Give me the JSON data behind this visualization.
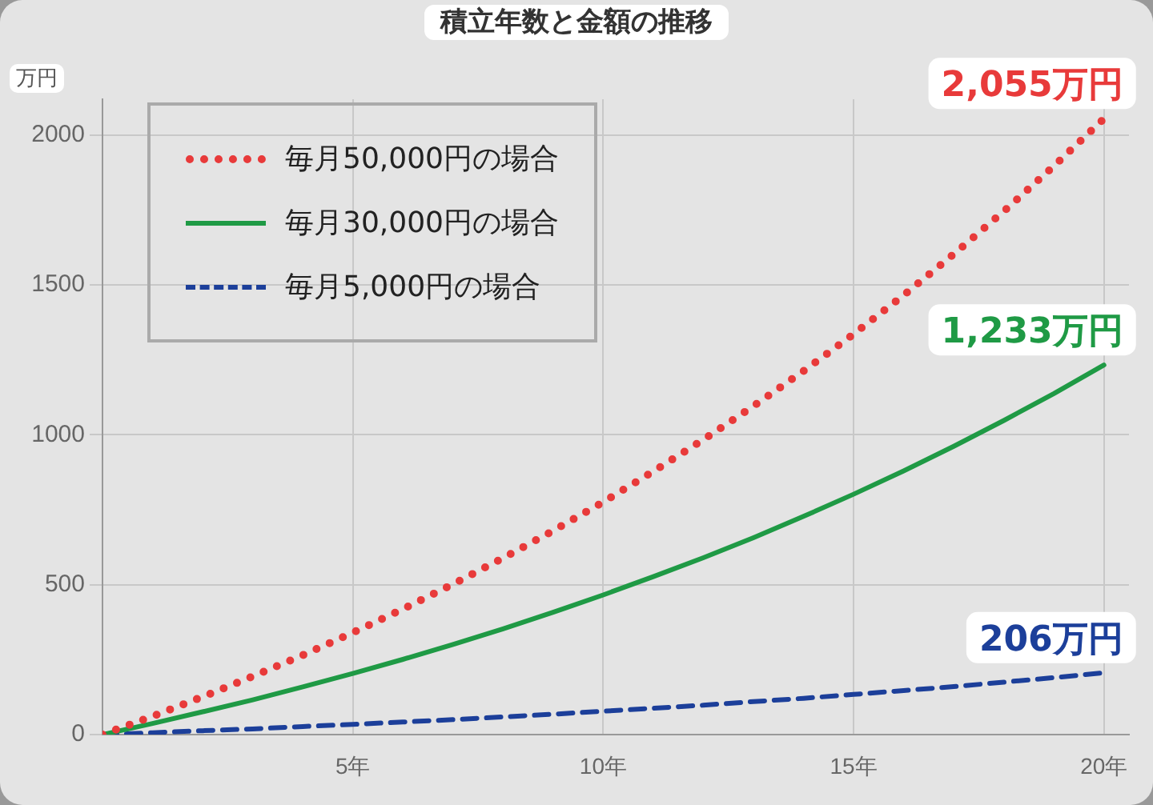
{
  "chart_data": {
    "type": "line",
    "title": "積立年数と金額の推移",
    "ylabel": "万円",
    "x": [
      0,
      1,
      2,
      3,
      4,
      5,
      6,
      7,
      8,
      9,
      10,
      11,
      12,
      13,
      14,
      15,
      16,
      17,
      18,
      19,
      20
    ],
    "series": [
      {
        "name": "毎月50,000円の場合",
        "color": "#e83a3a",
        "line_style": "dotted",
        "values": [
          0,
          61,
          126,
          194,
          265,
          340,
          419,
          502,
          589,
          680,
          776,
          878,
          984,
          1096,
          1213,
          1336,
          1466,
          1603,
          1746,
          1897,
          2055
        ],
        "value_labels": [
          null,
          null,
          null,
          null,
          null,
          null,
          null,
          null,
          null,
          null,
          null,
          null,
          null,
          null,
          null,
          null,
          null,
          null,
          null,
          null,
          "2,055万円"
        ]
      },
      {
        "name": "毎月30,000円の場合",
        "color": "#1f9a45",
        "line_style": "solid",
        "values": [
          0,
          37,
          76,
          116,
          159,
          204,
          251,
          301,
          353,
          408,
          466,
          527,
          590,
          657,
          728,
          802,
          880,
          962,
          1048,
          1138,
          1233
        ],
        "value_labels": [
          null,
          null,
          null,
          null,
          null,
          null,
          null,
          null,
          null,
          null,
          null,
          null,
          null,
          null,
          null,
          null,
          null,
          null,
          null,
          null,
          "1,233万円"
        ]
      },
      {
        "name": "毎月5,000円の場合",
        "color": "#1c3f9a",
        "line_style": "dashed",
        "values": [
          0,
          6,
          13,
          19,
          27,
          34,
          42,
          50,
          59,
          68,
          78,
          88,
          98,
          110,
          121,
          134,
          147,
          160,
          175,
          190,
          206
        ],
        "value_labels": [
          null,
          null,
          null,
          null,
          null,
          null,
          null,
          null,
          null,
          null,
          null,
          null,
          null,
          null,
          null,
          null,
          null,
          null,
          null,
          null,
          "206万円"
        ]
      }
    ],
    "xlim": [
      0,
      20.5
    ],
    "xticks": [
      {
        "value": 5,
        "label": "5年"
      },
      {
        "value": 10,
        "label": "10年"
      },
      {
        "value": 15,
        "label": "15年"
      },
      {
        "value": 20,
        "label": "20年"
      }
    ],
    "ylim": [
      0,
      2120
    ],
    "yticks": [
      0,
      500,
      1000,
      1500,
      2000
    ],
    "grid": true,
    "legend": "top left",
    "marker": "none"
  }
}
